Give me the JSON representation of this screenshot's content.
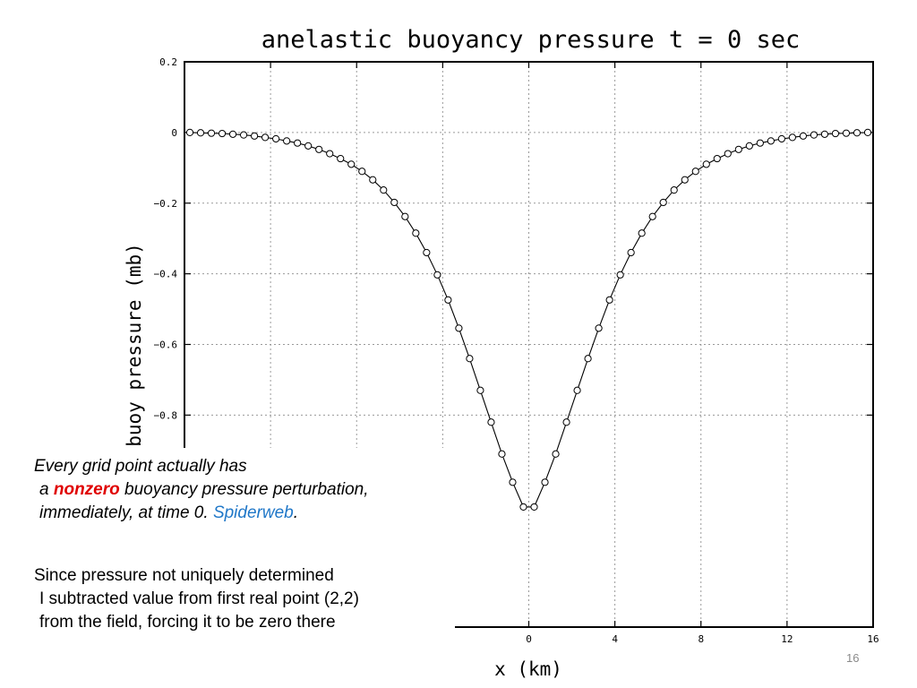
{
  "chart_data": {
    "type": "line",
    "title": "anelastic buoyancy pressure t = 0 sec",
    "xlabel": "x (km)",
    "ylabel": "buoy pressure (mb)",
    "xlim": [
      -16,
      16
    ],
    "ylim": [
      -1.4,
      0.2
    ],
    "grid": true,
    "x_ticks": [
      -16,
      -12,
      -8,
      -4,
      0,
      4,
      8,
      12,
      16
    ],
    "x_tick_labels": [
      "",
      "",
      "",
      "",
      "0",
      "4",
      "8",
      "12",
      "16"
    ],
    "y_ticks": [
      0.2,
      0,
      -0.2,
      -0.4,
      -0.6,
      -0.8
    ],
    "y_tick_labels": [
      "0.2",
      "0",
      "−0.2",
      "−0.4",
      "−0.6",
      "−0.8"
    ],
    "series": [
      {
        "markers": "open-circle",
        "x": [
          -15.75,
          -15.25,
          -14.75,
          -14.25,
          -13.75,
          -13.25,
          -12.75,
          -12.25,
          -11.75,
          -11.25,
          -10.75,
          -10.25,
          -9.75,
          -9.25,
          -8.75,
          -8.25,
          -7.75,
          -7.25,
          -6.75,
          -6.25,
          -5.75,
          -5.25,
          -4.75,
          -4.25,
          -3.75,
          -3.25,
          -2.75,
          -2.25,
          -1.75,
          -1.25,
          -0.75,
          -0.25,
          0.25,
          0.75,
          1.25,
          1.75,
          2.25,
          2.75,
          3.25,
          3.75,
          4.25,
          4.75,
          5.25,
          5.75,
          6.25,
          6.75,
          7.25,
          7.75,
          8.25,
          8.75,
          9.25,
          9.75,
          10.25,
          10.75,
          11.25,
          11.75,
          12.25,
          12.75,
          13.25,
          13.75,
          14.25,
          14.75,
          15.25,
          15.75
        ],
        "y": [
          0.0,
          -0.001,
          -0.002,
          -0.003,
          -0.005,
          -0.007,
          -0.01,
          -0.014,
          -0.018,
          -0.024,
          -0.03,
          -0.038,
          -0.048,
          -0.06,
          -0.074,
          -0.09,
          -0.11,
          -0.134,
          -0.163,
          -0.198,
          -0.238,
          -0.285,
          -0.34,
          -0.403,
          -0.474,
          -0.554,
          -0.64,
          -0.73,
          -0.82,
          -0.91,
          -0.99,
          -1.06,
          -1.06,
          -0.99,
          -0.91,
          -0.82,
          -0.73,
          -0.64,
          -0.554,
          -0.474,
          -0.403,
          -0.34,
          -0.285,
          -0.238,
          -0.198,
          -0.163,
          -0.134,
          -0.11,
          -0.09,
          -0.074,
          -0.06,
          -0.048,
          -0.038,
          -0.03,
          -0.024,
          -0.018,
          -0.014,
          -0.01,
          -0.007,
          -0.005,
          -0.003,
          -0.002,
          -0.001,
          0.0
        ]
      }
    ]
  },
  "notes": {
    "line1": "Every grid point actually has",
    "line2_prefix": "a ",
    "line2_highlight": "nonzero",
    "line2_suffix": " buoyancy pressure perturbation,",
    "line3_prefix": "immediately, at time 0.  ",
    "line3_highlight": "Spiderweb",
    "line3_suffix": ".",
    "line4": "Since pressure not uniquely determined",
    "line5": "I subtracted value from first real point (2,2)",
    "line6": "from the field, forcing it to be zero there"
  },
  "slide": {
    "number": "16"
  },
  "colors": {
    "highlight_red": "#e00000",
    "highlight_blue": "#1f77c8",
    "grid": "#9a9a9a"
  }
}
